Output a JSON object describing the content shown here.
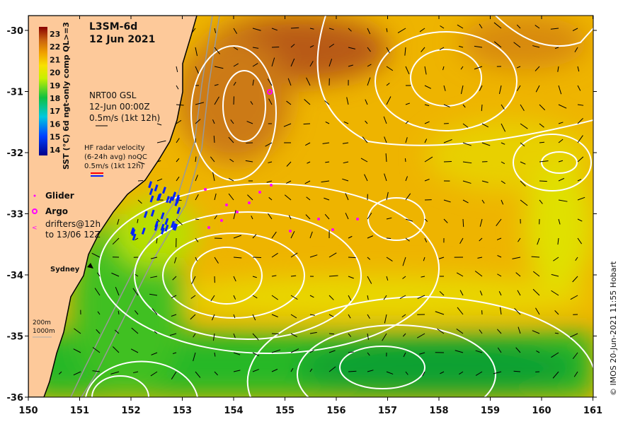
{
  "title": "L3SM-6d",
  "date": "12 Jun 2021",
  "colorbar": {
    "label": "SST (°C) 6d ngt-only comp QL>=3",
    "ticks": [
      "23",
      "22",
      "21",
      "20",
      "19",
      "18",
      "17",
      "16",
      "15",
      "14"
    ],
    "min": 13.5,
    "max": 23.5
  },
  "model": {
    "line1": "NRT00 GSL",
    "line2": "12-Jun 00:00Z",
    "line3": "0.5m/s (1kt 12h)"
  },
  "radar": {
    "line1": "HF radar velocity",
    "line2": "(6-24h avg) noQC",
    "line3": "0.5m/s (1kt 12h)"
  },
  "legend": {
    "glider": "Glider",
    "argo": "Argo",
    "drifters1": "drifters@12h",
    "drifters2": "to 13/06 12Z"
  },
  "city": "Sydney",
  "bathy": {
    "a": "200m",
    "b": "1000m"
  },
  "x_ticks": [
    "150",
    "151",
    "152",
    "153",
    "154",
    "155",
    "156",
    "157",
    "158",
    "159",
    "160",
    "161"
  ],
  "y_ticks": [
    "-30",
    "-31",
    "-32",
    "-33",
    "-34",
    "-35",
    "-36"
  ],
  "credit": "© IMOS 20-Jun-2021 11:55 Hobart",
  "colors": {
    "land": "#fdc99a",
    "warm": "#c4661c",
    "mid": "#f2c000",
    "cool": "#22b830",
    "magenta": "#ff00ff",
    "radar": "#0022ff"
  }
}
